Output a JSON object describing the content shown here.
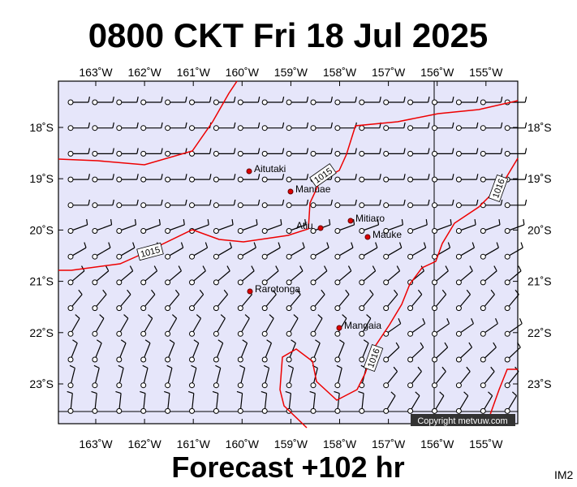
{
  "header": {
    "title": "0800 CKT Fri 18 Jul 2025"
  },
  "footer": {
    "forecast": "Forecast +102 hr",
    "code": "IM2"
  },
  "axes": {
    "lon_labels": [
      "163˚W",
      "162˚W",
      "161˚W",
      "160˚W",
      "159˚W",
      "158˚W",
      "157˚W",
      "156˚W",
      "155˚W"
    ],
    "lat_labels": [
      "18˚S",
      "19˚S",
      "20˚S",
      "21˚S",
      "22˚S",
      "23˚S"
    ]
  },
  "places": [
    "Aitutaki",
    "Manuae",
    "Atiu",
    "Mitiaro",
    "Mauke",
    "Rarotonga",
    "Mangaia"
  ],
  "isobars": [
    "1015",
    "1015",
    "1016",
    "1016"
  ],
  "copyright": "Copyright metvuw.com"
}
